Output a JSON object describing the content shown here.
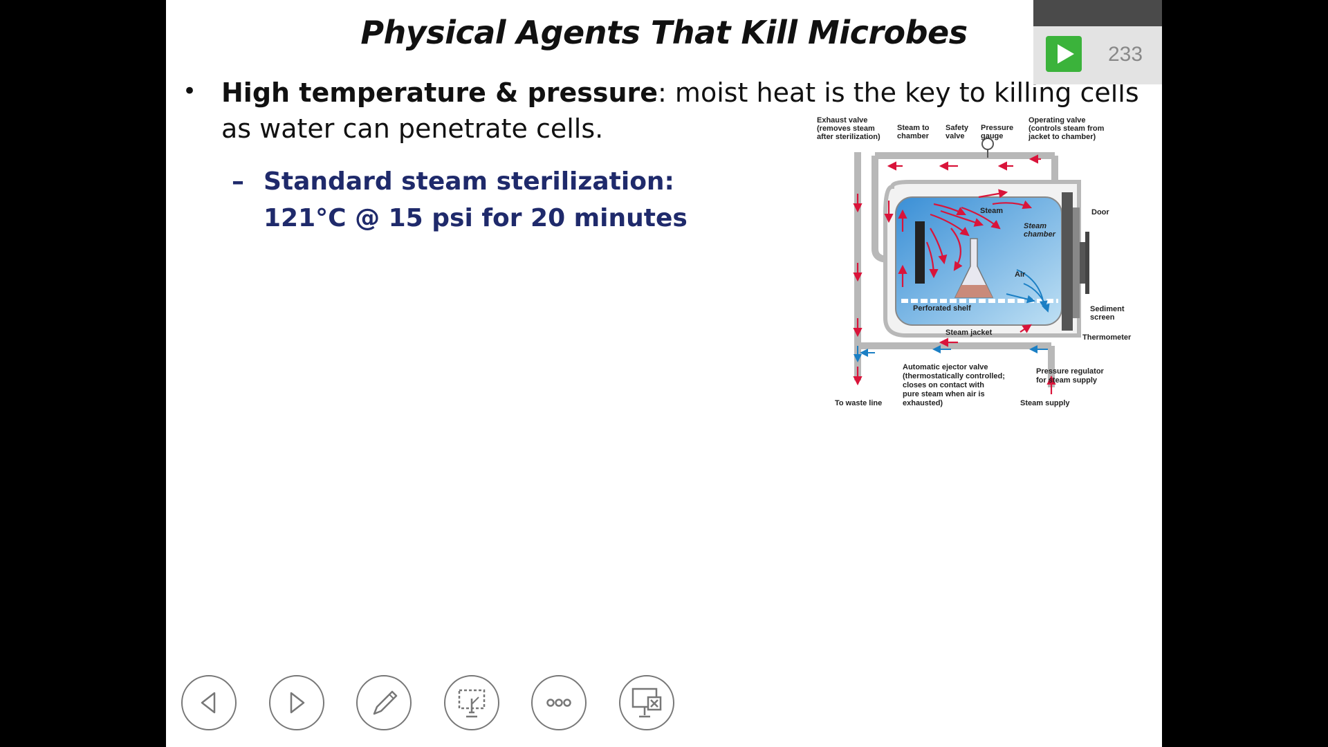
{
  "slide": {
    "title": "Physical Agents That Kill Microbes",
    "bullet": {
      "bold": "High temperature & pressure",
      "rest": ":  moist heat is the key to killing cells as water can penetrate cells."
    },
    "subbullet": {
      "dash": "–",
      "line1": "Standard steam sterilization:",
      "line2": "121°C @ 15 psi for 20 minutes"
    }
  },
  "diagram": {
    "labels": {
      "exhaust": [
        "Exhaust valve",
        "(removes steam",
        "after sterilization)"
      ],
      "steam_to_chamber": [
        "Steam to",
        "chamber"
      ],
      "safety": [
        "Safety",
        "valve"
      ],
      "pressure_gauge": [
        "Pressure",
        "gauge"
      ],
      "operating": [
        "Operating valve",
        "(controls steam from",
        "jacket to chamber)"
      ],
      "door": "Door",
      "steam": "Steam",
      "steam_chamber": [
        "Steam",
        "chamber"
      ],
      "air": "Air",
      "perforated_shelf": "Perforated shelf",
      "sediment": [
        "Sediment",
        "screen"
      ],
      "steam_jacket": "Steam jacket",
      "thermometer": "Thermometer",
      "ejector": [
        "Automatic ejector valve",
        "(thermostatically controlled;",
        "closes on contact with",
        "pure steam when air is",
        "exhausted)"
      ],
      "regulator": [
        "Pressure regulator",
        "for steam supply"
      ],
      "waste": "To waste line",
      "steam_supply": "Steam supply"
    }
  },
  "counter": {
    "value": "233"
  },
  "nav": {
    "icons": [
      "previous-slide-icon",
      "next-slide-icon",
      "pen-icon",
      "see-all-slides-icon",
      "more-options-icon",
      "end-show-icon"
    ]
  },
  "colors": {
    "title_sub": "#1f2a6b",
    "steam": "#d9143a",
    "air": "#1b7fc4"
  }
}
